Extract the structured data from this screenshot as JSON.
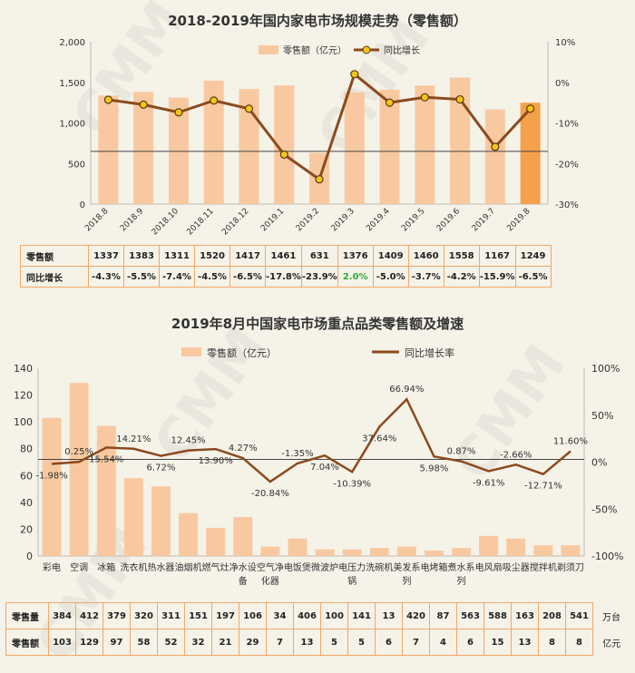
{
  "watermark": "CMM",
  "chart_data": [
    {
      "type": "bar",
      "title": "2018-2019年国内家电市场规模走势（零售额）",
      "categories": [
        "2018.8",
        "2018.9",
        "2018.10",
        "2018.11",
        "2018.12",
        "2019.1",
        "2019.2",
        "2019.3",
        "2019.4",
        "2019.5",
        "2019.6",
        "2019.7",
        "2019.8"
      ],
      "series": [
        {
          "name": "零售额（亿元）",
          "values": [
            1337,
            1383,
            1311,
            1520,
            1417,
            1461,
            631,
            1376,
            1409,
            1460,
            1558,
            1167,
            1249
          ],
          "axis": "left",
          "color": "#f8c9a0"
        },
        {
          "name": "同比增长",
          "values": [
            -4.3,
            -5.5,
            -7.4,
            -4.5,
            -6.5,
            -17.8,
            -23.9,
            2.0,
            -5.0,
            -3.7,
            -4.2,
            -15.9,
            -6.5
          ],
          "axis": "right",
          "type": "line",
          "color": "#8a4b1e"
        }
      ],
      "ylim_left": [
        0,
        2000
      ],
      "yticks_left": [
        "0",
        "500",
        "1,000",
        "1,500",
        "2,000"
      ],
      "ylim_right": [
        -30,
        10
      ],
      "yticks_right": [
        "-30%",
        "-20%",
        "-10%",
        "0%",
        "10%"
      ],
      "highlight_color": "#f5a04a",
      "reference_line_value": 650,
      "table": {
        "row_labels": [
          "零售额",
          "同比增长"
        ],
        "values": [
          "1337",
          "1383",
          "1311",
          "1520",
          "1417",
          "1461",
          "631",
          "1376",
          "1409",
          "1460",
          "1558",
          "1167",
          "1249"
        ],
        "growth": [
          "-4.3%",
          "-5.5%",
          "-7.4%",
          "-4.5%",
          "-6.5%",
          "-17.8%",
          "-23.9%",
          "2.0%",
          "-5.0%",
          "-3.7%",
          "-4.2%",
          "-15.9%",
          "-6.5%"
        ]
      },
      "positive_color": "#2eaa3e"
    },
    {
      "type": "bar",
      "title": "2019年8月中国家电市场重点品类零售额及增速",
      "categories": [
        "彩电",
        "空调",
        "冰箱",
        "洗衣机",
        "热水器",
        "油烟机",
        "燃气灶",
        "净水设备",
        "空气净化器",
        "电饭煲",
        "微波炉",
        "电压力锅",
        "洗碗机",
        "美发系列",
        "电烤箱",
        "煮水系列",
        "电风扇",
        "吸尘器",
        "搅拌机",
        "剃须刀"
      ],
      "category_lines": [
        [
          "彩电",
          ""
        ],
        [
          "空调",
          ""
        ],
        [
          "冰箱",
          ""
        ],
        [
          "洗衣机",
          ""
        ],
        [
          "热水器",
          ""
        ],
        [
          "油烟机",
          ""
        ],
        [
          "燃气灶",
          ""
        ],
        [
          "净水设",
          "备"
        ],
        [
          "空气净",
          "化器"
        ],
        [
          "电饭煲",
          ""
        ],
        [
          "微波炉",
          ""
        ],
        [
          "电压力",
          "锅"
        ],
        [
          "洗碗机",
          ""
        ],
        [
          "美发系",
          "列"
        ],
        [
          "电烤箱",
          ""
        ],
        [
          "煮水系",
          "列"
        ],
        [
          "电风扇",
          ""
        ],
        [
          "吸尘器",
          ""
        ],
        [
          "搅拌机",
          ""
        ],
        [
          "剃须刀",
          ""
        ]
      ],
      "series": [
        {
          "name": "零售额（亿元）",
          "values": [
            103,
            129,
            97,
            58,
            52,
            32,
            21,
            29,
            7,
            13,
            5,
            5,
            6,
            7,
            4,
            6,
            15,
            13,
            8,
            8
          ],
          "axis": "left",
          "color": "#f8c9a0"
        },
        {
          "name": "同比增长率",
          "values": [
            -1.98,
            0.25,
            15.54,
            14.21,
            6.72,
            12.45,
            13.9,
            4.27,
            -20.84,
            -1.35,
            7.04,
            -10.39,
            37.64,
            66.94,
            5.98,
            0.87,
            -9.61,
            -2.66,
            -12.71,
            11.6
          ],
          "axis": "right",
          "type": "line",
          "color": "#8a4b1e"
        }
      ],
      "data_labels": [
        "-1.98%",
        "0.25%",
        "15.54%",
        "14.21%",
        "6.72%",
        "12.45%",
        "13.90%",
        "4.27%",
        "-20.84%",
        "-1.35%",
        "7.04%",
        "-10.39%",
        "37.64%",
        "66.94%",
        "5.98%",
        "0.87%",
        "-9.61%",
        "-2.66%",
        "-12.71%",
        "11.60%"
      ],
      "ylim_left": [
        0,
        140
      ],
      "yticks_left": [
        "0",
        "20",
        "40",
        "60",
        "80",
        "100",
        "120",
        "140"
      ],
      "ylim_right": [
        -100,
        100
      ],
      "yticks_right": [
        "-100%",
        "-50%",
        "0%",
        "50%",
        "100%"
      ],
      "reference_line_value": 72,
      "table": {
        "row_labels": [
          "零售量",
          "零售额"
        ],
        "units": [
          "万台",
          "亿元"
        ],
        "volume": [
          "384",
          "412",
          "379",
          "320",
          "311",
          "151",
          "197",
          "106",
          "34",
          "406",
          "100",
          "141",
          "13",
          "420",
          "87",
          "563",
          "588",
          "163",
          "208",
          "541"
        ],
        "sales": [
          "103",
          "129",
          "97",
          "58",
          "52",
          "32",
          "21",
          "29",
          "7",
          "13",
          "5",
          "5",
          "6",
          "7",
          "4",
          "6",
          "15",
          "13",
          "8",
          "8"
        ]
      }
    }
  ]
}
